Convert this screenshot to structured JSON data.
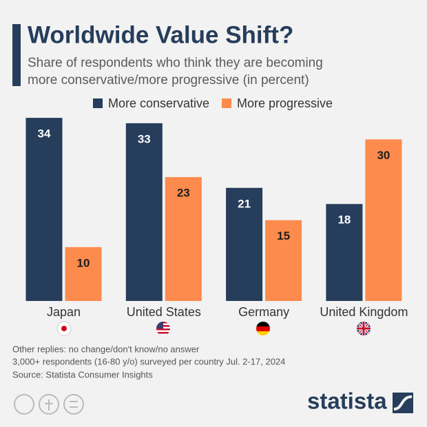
{
  "chart_data": {
    "type": "bar",
    "title": "Worldwide Value Shift?",
    "subtitle": [
      "Share of respondents who think they are becoming",
      "more conservative/more progressive (in percent)"
    ],
    "categories": [
      "Japan",
      "United States",
      "Germany",
      "United Kingdom"
    ],
    "series": [
      {
        "name": "More conservative",
        "color": "#263d5b",
        "values": [
          34,
          33,
          21,
          18
        ]
      },
      {
        "name": "More progressive",
        "color": "#fd8b4d",
        "values": [
          10,
          23,
          15,
          30
        ]
      }
    ],
    "notes": [
      "Other replies: no change/don't know/no answer",
      "3,000+ respondents (16-80 y/o) surveyed per country Jul. 2-17, 2024",
      "Source: Statista Consumer Insights"
    ],
    "logo": "statista"
  }
}
